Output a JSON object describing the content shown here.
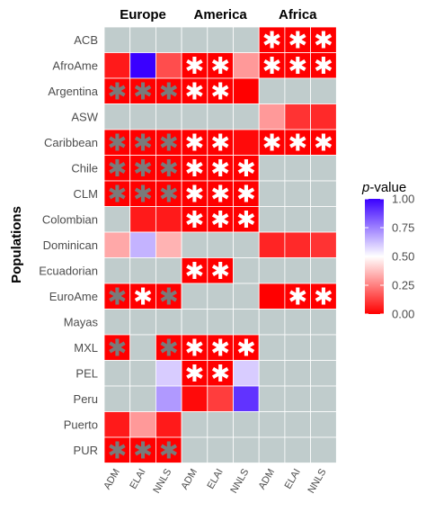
{
  "chart_data": {
    "type": "heatmap",
    "ylabel": "Populations",
    "groups": [
      "Europe",
      "America",
      "Africa"
    ],
    "columns": [
      "ADM",
      "ELAI",
      "NNLS",
      "ADM",
      "ELAI",
      "NNLS",
      "ADM",
      "ELAI",
      "NNLS"
    ],
    "rows": [
      "ACB",
      "AfroAme",
      "Argentina",
      "ASW",
      "Caribbean",
      "Chile",
      "CLM",
      "Colombian",
      "Dominican",
      "Ecuadorian",
      "EuroAme",
      "Mayas",
      "MXL",
      "PEL",
      "Peru",
      "Puerto",
      "PUR"
    ],
    "values": [
      [
        null,
        null,
        null,
        null,
        null,
        null,
        0.0,
        0.0,
        0.0
      ],
      [
        0.05,
        1.0,
        0.15,
        0.0,
        0.0,
        0.3,
        0.0,
        0.0,
        0.0
      ],
      [
        0.0,
        0.0,
        0.0,
        0.0,
        0.0,
        0.0,
        null,
        null,
        null
      ],
      [
        null,
        null,
        null,
        null,
        null,
        null,
        0.3,
        0.1,
        0.08
      ],
      [
        0.0,
        0.0,
        0.0,
        0.0,
        0.0,
        0.02,
        0.0,
        0.0,
        0.0
      ],
      [
        0.0,
        0.0,
        0.0,
        0.0,
        0.0,
        0.0,
        null,
        null,
        null
      ],
      [
        0.0,
        0.0,
        0.0,
        0.0,
        0.0,
        0.0,
        null,
        null,
        null
      ],
      [
        null,
        0.05,
        0.05,
        0.0,
        0.0,
        0.0,
        null,
        null,
        null
      ],
      [
        0.33,
        0.65,
        0.35,
        null,
        null,
        null,
        0.07,
        0.08,
        0.1
      ],
      [
        null,
        null,
        null,
        0.0,
        0.0,
        null,
        null,
        null,
        null
      ],
      [
        0.0,
        0.0,
        0.0,
        null,
        null,
        null,
        0.0,
        0.0,
        0.0
      ],
      [
        null,
        null,
        null,
        null,
        null,
        null,
        null,
        null,
        null
      ],
      [
        0.0,
        null,
        0.0,
        0.0,
        0.0,
        0.0,
        null,
        null,
        null
      ],
      [
        null,
        null,
        0.6,
        0.0,
        0.0,
        0.6,
        null,
        null,
        null
      ],
      [
        null,
        null,
        0.7,
        0.02,
        0.12,
        0.9,
        null,
        null,
        null
      ],
      [
        0.05,
        0.3,
        0.05,
        null,
        null,
        null,
        null,
        null,
        null
      ],
      [
        0.0,
        0.0,
        0.0,
        null,
        null,
        null,
        null,
        null,
        null
      ]
    ],
    "stars": [
      [
        "",
        "",
        "",
        "",
        "",
        "",
        "white",
        "white",
        "white"
      ],
      [
        "",
        "",
        "",
        "white",
        "white",
        "",
        "white",
        "white",
        "white"
      ],
      [
        "gray",
        "gray",
        "gray",
        "white",
        "white",
        "",
        "",
        "",
        ""
      ],
      [
        "",
        "",
        "",
        "",
        "",
        "",
        "",
        "",
        ""
      ],
      [
        "gray",
        "gray",
        "gray",
        "white",
        "white",
        "",
        "white",
        "white",
        "white"
      ],
      [
        "gray",
        "gray",
        "gray",
        "white",
        "white",
        "white",
        "",
        "",
        ""
      ],
      [
        "gray",
        "gray",
        "gray",
        "white",
        "white",
        "white",
        "",
        "",
        ""
      ],
      [
        "",
        "",
        "",
        "white",
        "white",
        "white",
        "",
        "",
        ""
      ],
      [
        "",
        "",
        "",
        "",
        "",
        "",
        "",
        "",
        ""
      ],
      [
        "",
        "",
        "",
        "white",
        "white",
        "",
        "",
        "",
        ""
      ],
      [
        "gray",
        "white",
        "gray",
        "",
        "",
        "",
        "",
        "white",
        "white"
      ],
      [
        "",
        "",
        "",
        "",
        "",
        "",
        "",
        "",
        ""
      ],
      [
        "gray",
        "",
        "gray",
        "white",
        "white",
        "white",
        "",
        "",
        ""
      ],
      [
        "",
        "",
        "",
        "white",
        "white",
        "",
        "",
        "",
        ""
      ],
      [
        "",
        "",
        "",
        "",
        "",
        "",
        "",
        "",
        ""
      ],
      [
        "",
        "",
        "",
        "",
        "",
        "",
        "",
        "",
        ""
      ],
      [
        "gray",
        "gray",
        "gray",
        "",
        "",
        "",
        "",
        "",
        ""
      ]
    ],
    "legend": {
      "title_prefix": "p",
      "title_suffix": "-value",
      "ticks": [
        "1.00",
        "0.75",
        "0.50",
        "0.25",
        "0.00"
      ],
      "tick_values": [
        1.0,
        0.75,
        0.5,
        0.25,
        0.0
      ],
      "range": [
        0,
        1
      ],
      "placement": "right"
    },
    "colors": {
      "low": "#ff0000",
      "mid": "#ffffff",
      "high": "#3a00ff",
      "na": "#c0cccc",
      "star_light": "#ffffff",
      "star_dark": "#7a7a7a"
    },
    "star_glyph": "✱"
  }
}
